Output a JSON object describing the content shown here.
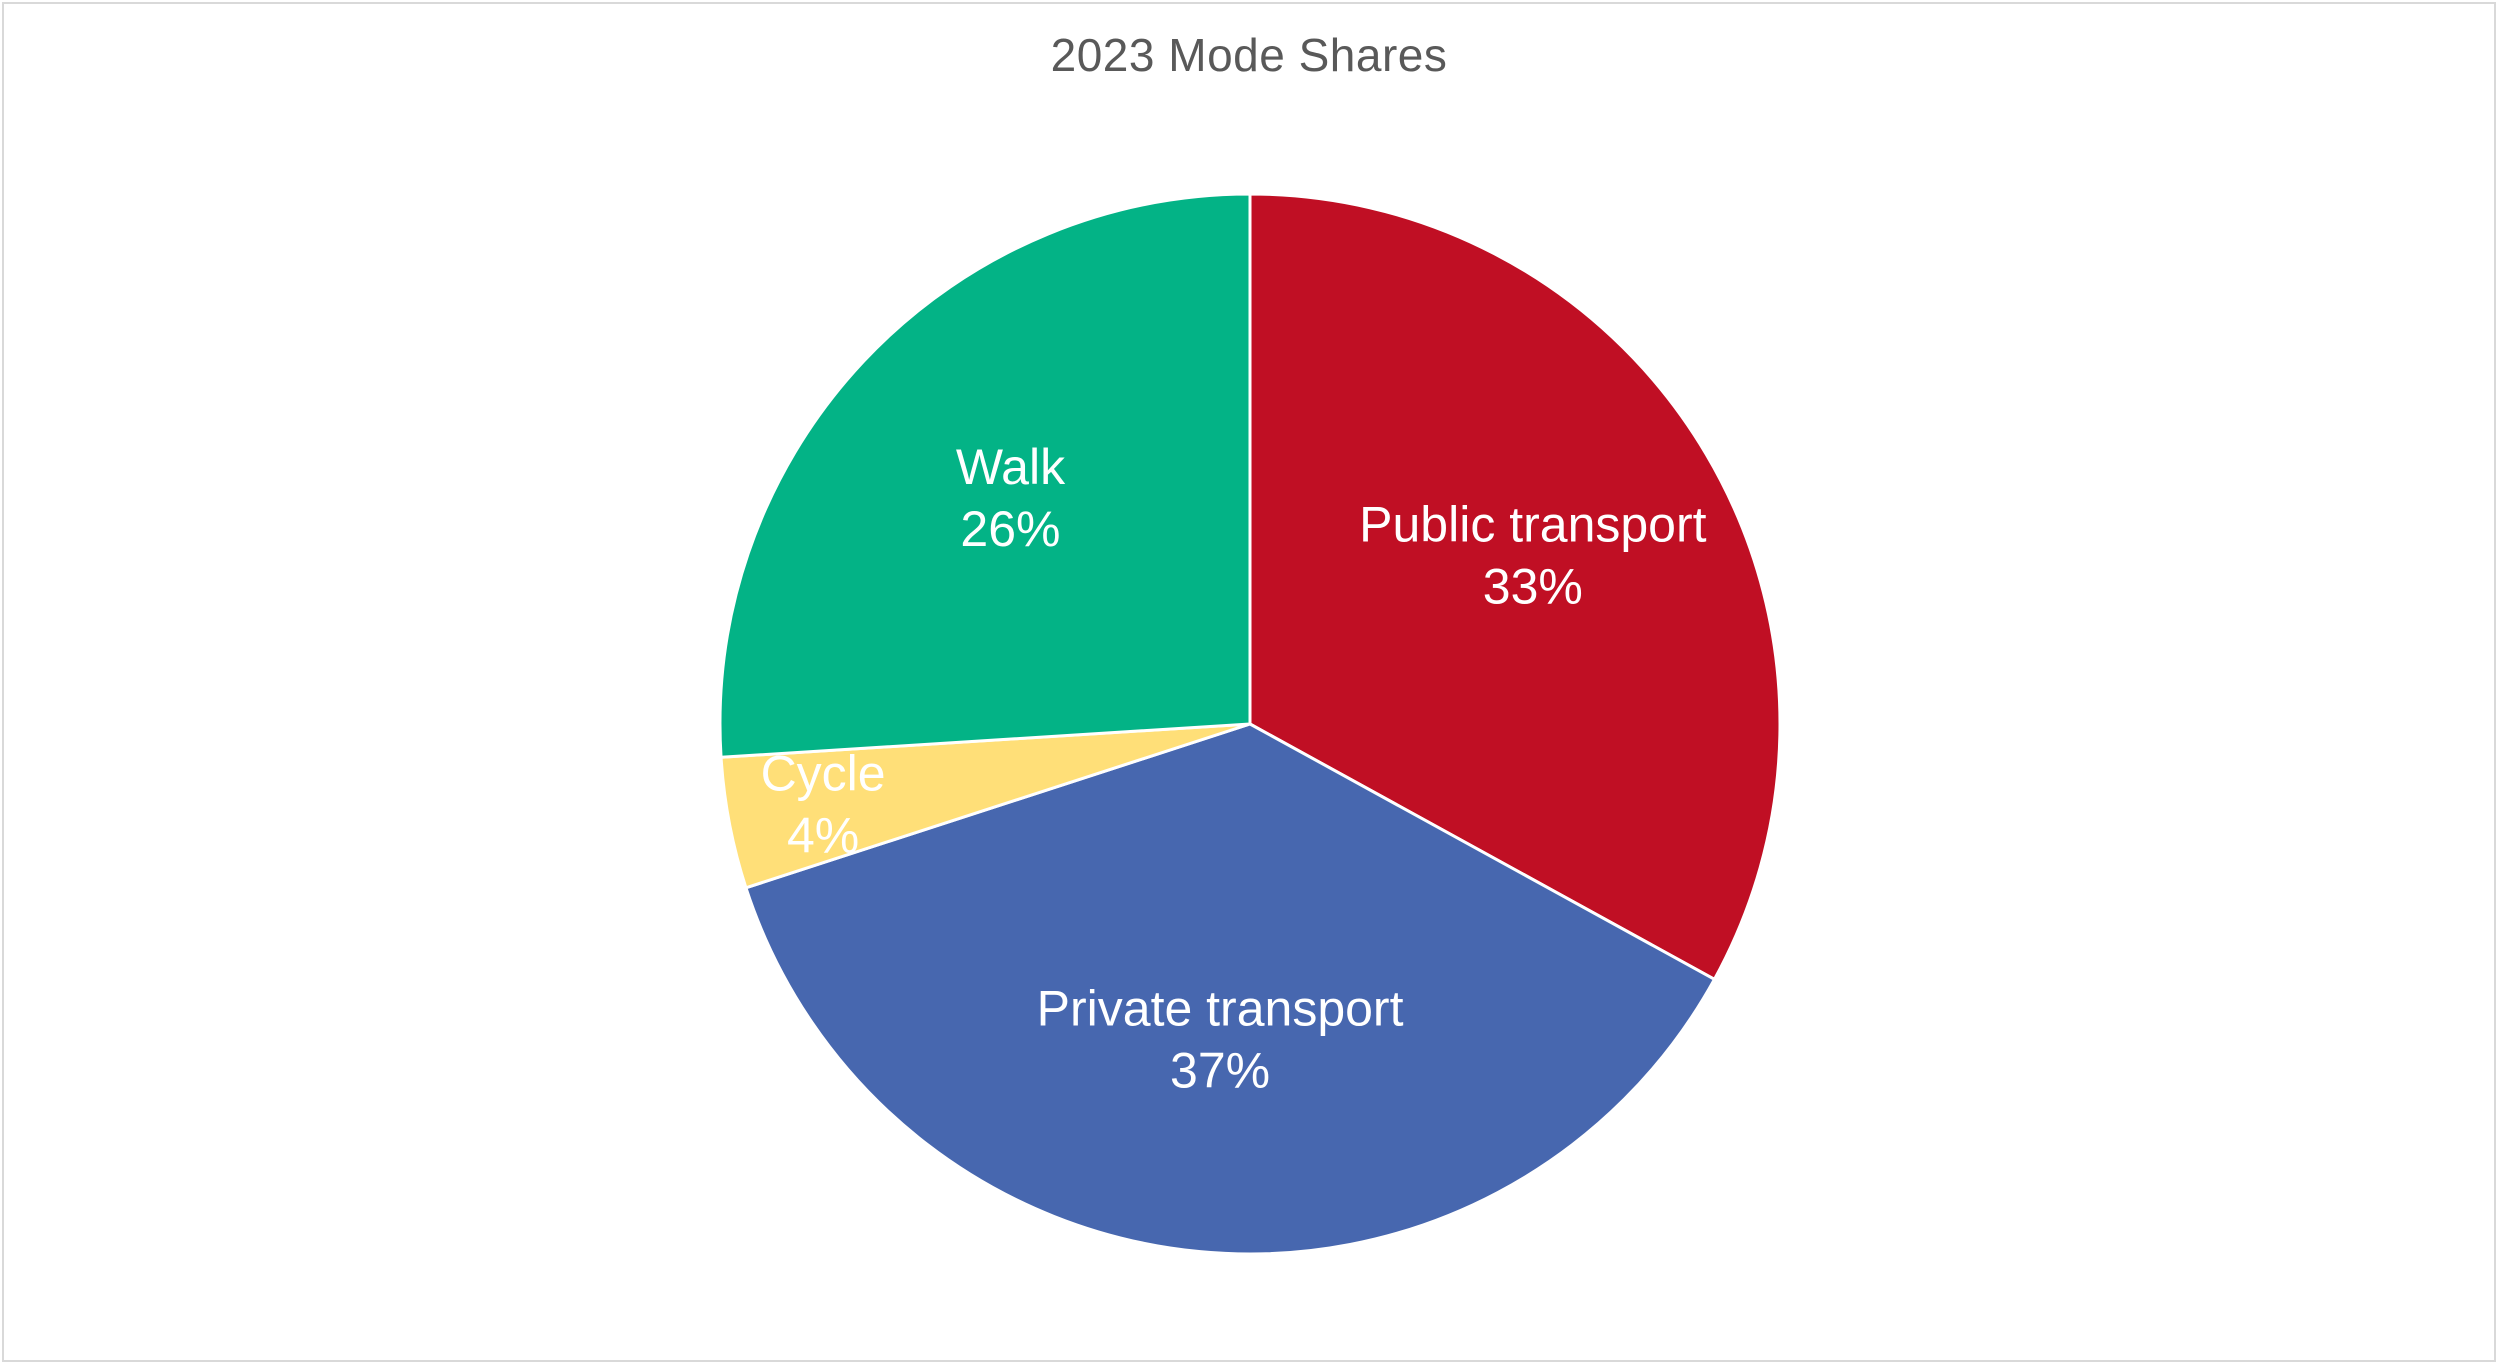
{
  "chart_data": {
    "type": "pie",
    "title": "2023 Mode Shares",
    "categories": [
      "Public transport",
      "Private transport",
      "Cycle",
      "Walk"
    ],
    "values": [
      33,
      37,
      4,
      26
    ],
    "value_labels": [
      "33%",
      "37%",
      "4%",
      "26%"
    ],
    "colors": [
      "#C00F24",
      "#4767AF",
      "#FFDF78",
      "#03B386"
    ],
    "start": "12 o'clock",
    "direction": "clockwise",
    "legend": "none",
    "data_labels": "category name and percentage inside slices"
  }
}
